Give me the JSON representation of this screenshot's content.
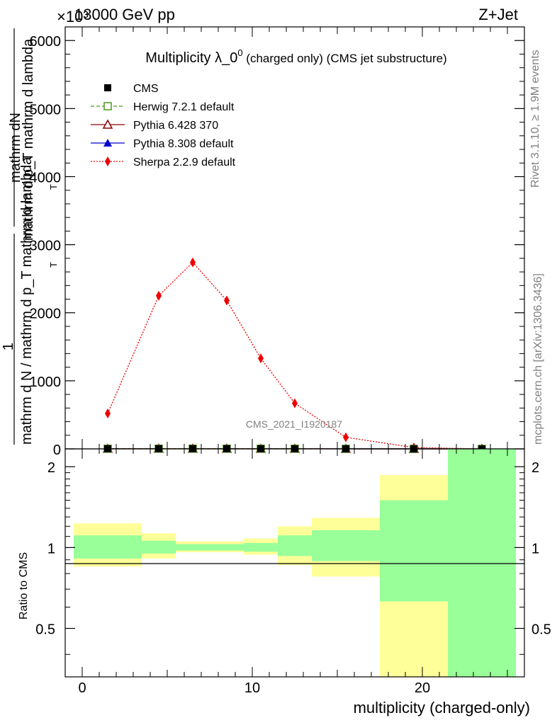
{
  "header": {
    "energy": "13000 GeV pp",
    "process": "Z+Jet",
    "exponent": "×10³"
  },
  "plot_title": {
    "main": "Multiplicity λ_0",
    "sup": "0",
    "suffix": " (charged only) (CMS jet substructure)"
  },
  "y_label": {
    "numerator_top": "mathrm dN",
    "numerator_bottom": "mathrm d p_T mathrm d lambda",
    "one": "1",
    "denominator": "mathrm d N / mathrm d p_T mathrm d lambda"
  },
  "ratio_ylabel": "Ratio to CMS",
  "x_label": "multiplicity (charged-only)",
  "side_text": {
    "rivet": "Rivet 3.1.10, ≥ 1.9M events",
    "mcplots": "mcplots.cern.ch [arXiv:1306.3436]"
  },
  "watermark": "CMS_2021_I1920187",
  "legend": [
    {
      "label": "CMS",
      "color": "#000000",
      "marker": "square-filled",
      "line": "none"
    },
    {
      "label": "Herwig 7.2.1 default",
      "color": "#4a9a1a",
      "marker": "square-open",
      "line": "dashed"
    },
    {
      "label": "Pythia 6.428 370",
      "color": "#8b0000",
      "marker": "triangle-open",
      "line": "solid"
    },
    {
      "label": "Pythia 8.308 default",
      "color": "#0000cc",
      "marker": "triangle-filled",
      "line": "solid"
    },
    {
      "label": "Sherpa 2.2.9 default",
      "color": "#ee0000",
      "marker": "diamond-filled",
      "line": "dotted"
    }
  ],
  "chart_data": [
    {
      "type": "line",
      "panel": "main",
      "x": [
        1.5,
        4.5,
        6.5,
        8.5,
        10.5,
        12.5,
        15.5,
        19.5,
        23.5
      ],
      "xlim": [
        -1,
        26
      ],
      "ylim": [
        0,
        6200
      ],
      "yticks": [
        0,
        1000,
        2000,
        3000,
        4000,
        5000,
        6000
      ],
      "ytick_labels": [
        "0",
        "1000",
        "2000",
        "3000",
        "4000",
        "5000",
        "6000"
      ],
      "series": [
        {
          "name": "CMS",
          "values": [
            2,
            3,
            3,
            3,
            2,
            2,
            1,
            0.5,
            0.2
          ]
        },
        {
          "name": "Herwig 7.2.1 default",
          "values": [
            2,
            3,
            3,
            3,
            2,
            2,
            1,
            0.5,
            0.2
          ]
        },
        {
          "name": "Pythia 6.428 370",
          "values": [
            2,
            3,
            3,
            3,
            2,
            2,
            1,
            0.5,
            0.2
          ]
        },
        {
          "name": "Pythia 8.308 default",
          "values": [
            2,
            3,
            3,
            3,
            2,
            2,
            1,
            0.5,
            0.2
          ]
        },
        {
          "name": "Sherpa 2.2.9 default",
          "values": [
            520,
            2250,
            2740,
            2180,
            1330,
            670,
            170,
            20,
            0
          ]
        }
      ]
    },
    {
      "type": "area",
      "panel": "ratio",
      "xlim": [
        -1,
        26
      ],
      "ylim": [
        0.33,
        2.33
      ],
      "yscale": "log",
      "yticks": [
        0.5,
        1,
        2
      ],
      "ytick_labels": [
        "0.5",
        "1",
        "2"
      ],
      "xticks": [
        0,
        10,
        20
      ],
      "xtick_labels": [
        "0",
        "10",
        "20"
      ],
      "bins": [
        {
          "lo": -0.5,
          "hi": 3.5,
          "stat_lo": 0.91,
          "stat_hi": 1.11,
          "tot_lo": 0.85,
          "tot_hi": 1.23
        },
        {
          "lo": 3.5,
          "hi": 5.5,
          "stat_lo": 0.95,
          "stat_hi": 1.06,
          "tot_lo": 0.91,
          "tot_hi": 1.13
        },
        {
          "lo": 5.5,
          "hi": 7.5,
          "stat_lo": 0.975,
          "stat_hi": 1.03,
          "tot_lo": 0.96,
          "tot_hi": 1.055
        },
        {
          "lo": 7.5,
          "hi": 9.5,
          "stat_lo": 0.975,
          "stat_hi": 1.03,
          "tot_lo": 0.96,
          "tot_hi": 1.055
        },
        {
          "lo": 9.5,
          "hi": 11.5,
          "stat_lo": 0.965,
          "stat_hi": 1.04,
          "tot_lo": 0.94,
          "tot_hi": 1.08
        },
        {
          "lo": 11.5,
          "hi": 13.5,
          "stat_lo": 0.93,
          "stat_hi": 1.11,
          "tot_lo": 0.86,
          "tot_hi": 1.2
        },
        {
          "lo": 13.5,
          "hi": 17.5,
          "stat_lo": 0.89,
          "stat_hi": 1.16,
          "tot_lo": 0.78,
          "tot_hi": 1.29
        },
        {
          "lo": 17.5,
          "hi": 21.5,
          "stat_lo": 0.63,
          "stat_hi": 1.5,
          "tot_lo": 0.33,
          "tot_hi": 1.86
        },
        {
          "lo": 21.5,
          "hi": 25.5,
          "stat_lo": 0.33,
          "stat_hi": 2.33,
          "tot_lo": 0.33,
          "tot_hi": 2.33
        }
      ],
      "reference_line": 1
    }
  ],
  "colors": {
    "stat_band": "#99ff99",
    "syst_band": "#ffff99",
    "axis": "#000000",
    "watermark": "#808080"
  }
}
